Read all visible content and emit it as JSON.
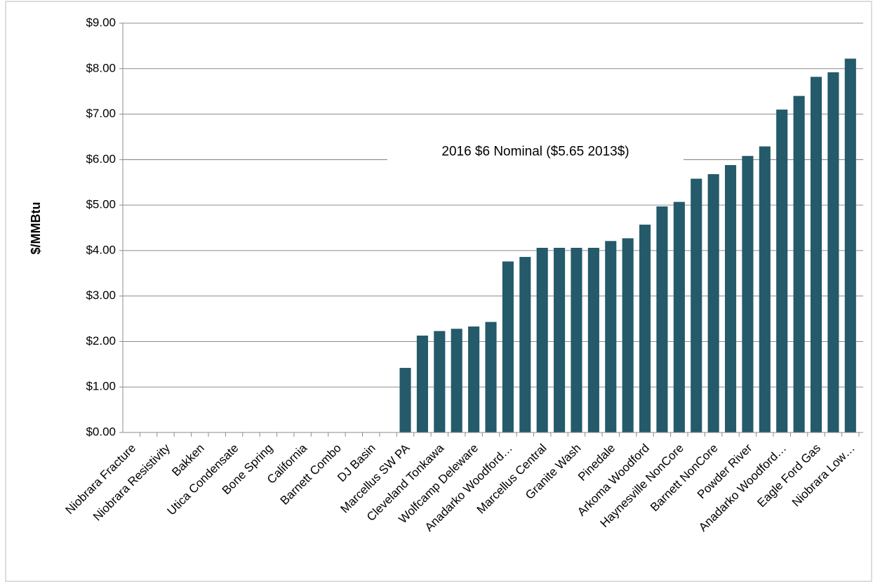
{
  "chart_data": {
    "type": "bar",
    "categories": [
      "Niobrara Fracture",
      null,
      "Niobrara Resistivity",
      null,
      "Bakken",
      null,
      "Utica Condensate",
      null,
      "Bone Spring",
      null,
      "California",
      null,
      "Barnett Combo",
      null,
      "DJ Basin",
      null,
      "Marcellus SW PA",
      null,
      "Cleveland Tonkawa",
      null,
      "Wolfcamp Deleware",
      null,
      "Anadarko Woodford…",
      null,
      "Marcellus Central",
      null,
      "Granite Wash",
      null,
      "Pinedale",
      null,
      "Arkoma Woodford",
      null,
      "Haynesville  NonCore",
      null,
      "Barnett NonCore",
      null,
      "Powder River",
      null,
      "Anadarko Woodford…",
      null,
      "Eagle Ford Gas",
      null,
      "Niobrara Low…"
    ],
    "values": [
      0,
      0,
      0,
      0,
      0,
      0,
      0,
      0,
      0,
      0,
      0,
      0,
      0,
      0,
      0,
      0,
      1.42,
      2.13,
      2.23,
      2.28,
      2.33,
      2.43,
      3.76,
      3.86,
      4.06,
      4.06,
      4.06,
      4.06,
      4.21,
      4.27,
      4.57,
      4.97,
      5.07,
      5.58,
      5.68,
      5.88,
      6.08,
      6.29,
      7.1,
      7.4,
      7.82,
      7.92,
      8.22
    ],
    "color": "#245a6a",
    "y_label": "$/MMBtu",
    "annotation": {
      "text": "2016 $6 Nominal ($5.65 2013$)",
      "value": 6
    },
    "ylim": [
      0,
      9
    ],
    "yticks": [
      {
        "value": 0,
        "label": "$0.00"
      },
      {
        "value": 1,
        "label": "$1.00"
      },
      {
        "value": 2,
        "label": "$2.00"
      },
      {
        "value": 3,
        "label": "$3.00"
      },
      {
        "value": 4,
        "label": "$4.00"
      },
      {
        "value": 5,
        "label": "$5.00"
      },
      {
        "value": 6,
        "label": "$6.00"
      },
      {
        "value": 7,
        "label": "$7.00"
      },
      {
        "value": 8,
        "label": "$8.00"
      },
      {
        "value": 9,
        "label": "$9.00"
      }
    ],
    "grid": true
  }
}
